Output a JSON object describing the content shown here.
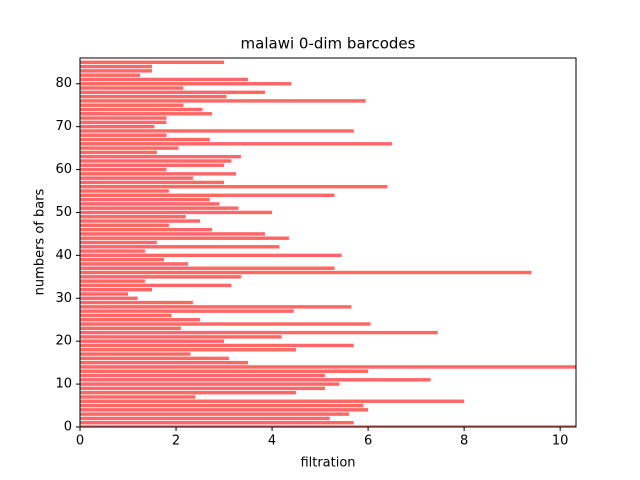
{
  "chart_data": {
    "type": "barh",
    "title": "malawi 0-dim barcodes",
    "xlabel": "filtration",
    "ylabel": "numbers of bars",
    "color": "#ff6666",
    "values": [
      10.33,
      5.7,
      5.2,
      5.6,
      6.0,
      5.9,
      8.0,
      2.4,
      4.5,
      5.1,
      5.4,
      7.3,
      5.1,
      6.0,
      10.33,
      3.5,
      3.1,
      2.3,
      4.5,
      5.7,
      3.0,
      4.2,
      7.45,
      2.1,
      6.05,
      2.5,
      1.9,
      4.45,
      5.65,
      2.35,
      1.2,
      1.0,
      1.5,
      3.15,
      1.35,
      3.35,
      9.4,
      5.3,
      2.25,
      1.75,
      5.45,
      1.35,
      4.15,
      1.6,
      4.35,
      3.85,
      2.75,
      1.85,
      2.5,
      2.2,
      4.0,
      3.3,
      2.9,
      2.7,
      5.3,
      1.85,
      6.4,
      3.0,
      2.35,
      3.25,
      1.8,
      3.0,
      3.15,
      3.35,
      1.6,
      2.05,
      6.5,
      2.7,
      1.8,
      5.7,
      1.55,
      1.8,
      1.8,
      2.75,
      2.55,
      2.15,
      5.95,
      3.05,
      3.85,
      2.15,
      4.4,
      3.5,
      1.25,
      1.5,
      1.5,
      3.0
    ],
    "xlim": [
      0,
      10.33
    ],
    "xticks": [
      0,
      2,
      4,
      6,
      8,
      10
    ],
    "ylim": [
      0,
      86
    ],
    "yticks": [
      0,
      10,
      20,
      30,
      40,
      50,
      60,
      70,
      80
    ]
  }
}
